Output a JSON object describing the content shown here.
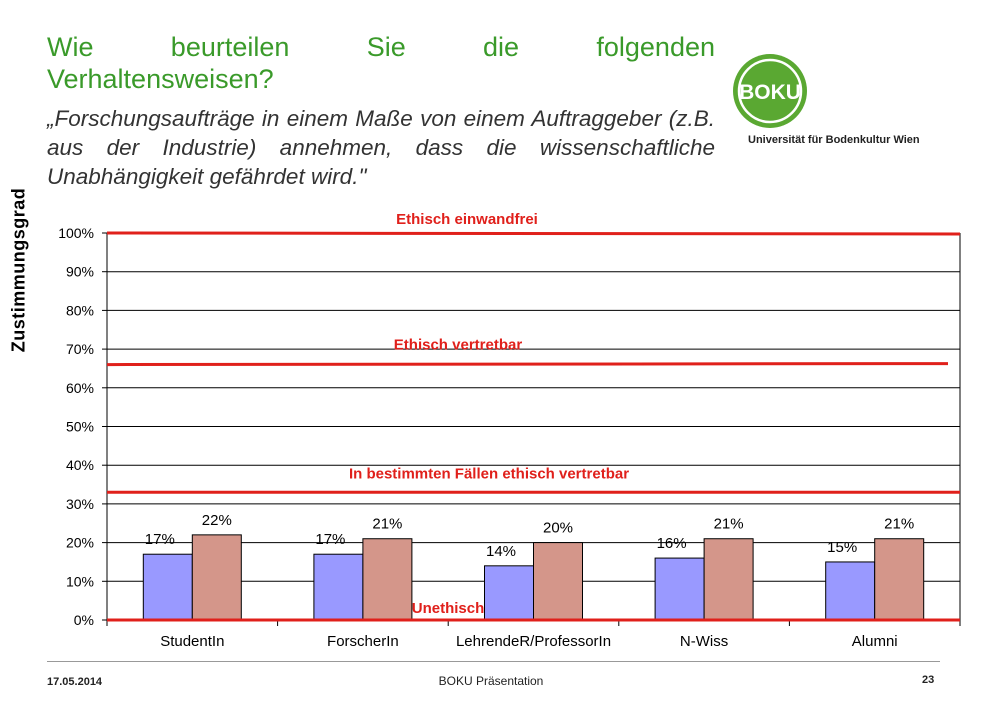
{
  "slide": {
    "title_line1": "Wie beurteilen Sie die folgenden",
    "title_line2": "Verhaltensweisen?",
    "quote": "„Forschungsaufträge in einem Maße von einem Auftraggeber (z.B. aus der Industrie) annehmen, dass die wissenschaftliche Unabhängigkeit gefährdet wird.\"",
    "logo_text": "BOKU",
    "university": "Universität für Bodenkultur Wien",
    "footer_date": "17.05.2014",
    "footer_center": "BOKU Präsentation",
    "page_number": "23"
  },
  "colors": {
    "title_green": "#3a9a2a",
    "logo_green": "#5aa832",
    "series1": "#9999ff",
    "series2": "#d4968a",
    "threshold": "#e0201b"
  },
  "chart_data": {
    "type": "bar",
    "categories": [
      "StudentIn",
      "ForscherIn",
      "LehrendeR/ProfessorIn",
      "N-Wiss",
      "Alumni"
    ],
    "series": [
      {
        "values": [
          17,
          17,
          14,
          16,
          15
        ],
        "labels": [
          "17%",
          "17%",
          "14%",
          "16%",
          "15%"
        ],
        "color": "#9999ff"
      },
      {
        "values": [
          22,
          21,
          20,
          21,
          21
        ],
        "labels": [
          "22%",
          "21%",
          "20%",
          "21%",
          "21%"
        ],
        "color": "#d4968a"
      }
    ],
    "ylabel": "Zustimmungsgrad",
    "ylim": [
      0,
      100
    ],
    "yticks": [
      0,
      10,
      20,
      30,
      40,
      50,
      60,
      70,
      80,
      90,
      100
    ],
    "ytick_labels": [
      "0%",
      "10%",
      "20%",
      "30%",
      "40%",
      "50%",
      "60%",
      "70%",
      "80%",
      "90%",
      "100%"
    ],
    "grid": true,
    "legend": "none",
    "thresholds": [
      {
        "label": "Ethisch einwandfrei",
        "value": 100
      },
      {
        "label": "Ethisch vertretbar",
        "value": 66
      },
      {
        "label": "In bestimmten Fällen ethisch vertretbar",
        "value": 33
      },
      {
        "label": "Unethisch",
        "value": 0
      }
    ]
  }
}
